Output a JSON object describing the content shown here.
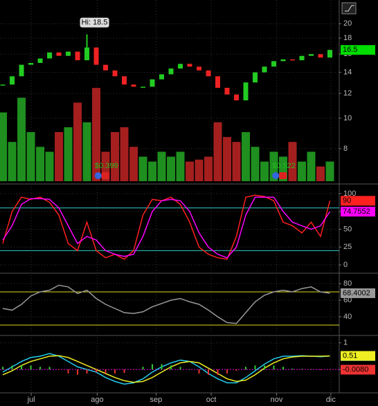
{
  "chart_data": [
    {
      "type": "candlestick",
      "values": [
        12.8,
        13.6,
        14.8,
        15.0,
        15.5,
        16.2,
        15.8,
        16.3,
        15.3,
        16.8,
        14.8,
        14.2,
        13.6,
        12.8,
        12.6,
        12.6,
        13.3,
        13.8,
        14.4,
        14.9,
        14.6,
        14.2,
        13.6,
        12.5,
        11.9,
        11.4,
        13.0,
        14.0,
        14.6,
        15.2,
        15.4,
        15.3,
        15.8,
        16.0,
        15.6,
        16.5
      ],
      "volume": [
        70,
        40,
        85,
        50,
        35,
        30,
        50,
        55,
        80,
        60,
        95,
        30,
        50,
        55,
        35,
        25,
        20,
        30,
        25,
        30,
        20,
        22,
        25,
        60,
        45,
        40,
        50,
        35,
        20,
        30,
        25,
        40,
        20,
        30,
        15,
        20
      ],
      "volume_ylim": [
        0,
        100
      ],
      "ylim": [
        6.3,
        23.8
      ],
      "log_scale": true,
      "yticks": [
        8,
        10,
        12,
        14,
        16,
        18,
        20
      ],
      "xlim": [
        -0.3,
        36
      ],
      "grid": true,
      "up_color": "#22cc22",
      "down_color": "#ee2222",
      "volume_up_color": "#1f8f1f",
      "volume_down_color": "#a51f1f",
      "last_color": "#00dd00",
      "annotation": {
        "label": "Hi: 18.5",
        "value": 18.5,
        "x": 9
      },
      "dividends": [
        {
          "label": "$0.399",
          "x": 10.2
        },
        {
          "label": "$0.522",
          "x": 29.2
        }
      ]
    },
    {
      "type": "line",
      "ylim": [
        -8.7,
        109.7
      ],
      "yticks": [
        0,
        25,
        50,
        75,
        100
      ],
      "xlim": [
        -0.3,
        36
      ],
      "grid": true,
      "hlines": [
        20,
        80
      ],
      "hline_color": "#33cccc",
      "series": [
        {
          "color": "#ff2020",
          "values": [
            30,
            75,
            95,
            92,
            95,
            88,
            70,
            30,
            20,
            60,
            20,
            10,
            15,
            8,
            20,
            70,
            92,
            90,
            95,
            85,
            60,
            25,
            15,
            10,
            8,
            40,
            95,
            98,
            96,
            90,
            60,
            55,
            45,
            60,
            40,
            90
          ]
        },
        {
          "color": "#ff00ff",
          "values": [
            35,
            55,
            85,
            93,
            93,
            92,
            80,
            55,
            30,
            40,
            35,
            20,
            15,
            12,
            15,
            40,
            75,
            90,
            92,
            90,
            75,
            45,
            25,
            15,
            10,
            25,
            70,
            95,
            95,
            95,
            75,
            60,
            55,
            50,
            55,
            74.7552
          ]
        }
      ]
    },
    {
      "type": "line",
      "ylim": [
        20,
        90
      ],
      "yticks": [
        40,
        60,
        80
      ],
      "xlim": [
        -0.3,
        36
      ],
      "grid": true,
      "hlines": [
        30,
        70
      ],
      "hline_color": "#dddd22",
      "series": [
        {
          "color": "#9a9a9a",
          "values": [
            50,
            48,
            55,
            65,
            70,
            72,
            78,
            76,
            68,
            72,
            62,
            55,
            50,
            45,
            44,
            46,
            52,
            56,
            60,
            62,
            58,
            55,
            48,
            40,
            33,
            32,
            45,
            58,
            66,
            70,
            72,
            70,
            74,
            76,
            70,
            68.4002
          ]
        }
      ]
    },
    {
      "type": "line",
      "ylim": [
        -0.8,
        1.2
      ],
      "yticks": [
        0,
        1
      ],
      "xlim": [
        -0.3,
        36
      ],
      "grid": true,
      "xticks": [
        {
          "value": 3.04,
          "label": "jul"
        },
        {
          "value": 10.1,
          "label": "ago"
        },
        {
          "value": 16.4,
          "label": "sep"
        },
        {
          "value": 22.3,
          "label": "oct"
        },
        {
          "value": 29.3,
          "label": "nov"
        },
        {
          "value": 35.1,
          "label": "dic"
        }
      ],
      "series": [
        {
          "color": "#22ccee",
          "values": [
            -0.1,
            0.1,
            0.3,
            0.45,
            0.5,
            0.6,
            0.5,
            0.3,
            0.1,
            0.0,
            -0.1,
            -0.3,
            -0.45,
            -0.55,
            -0.5,
            -0.35,
            -0.1,
            0.1,
            0.25,
            0.35,
            0.3,
            0.1,
            -0.15,
            -0.35,
            -0.5,
            -0.5,
            -0.3,
            -0.05,
            0.2,
            0.4,
            0.5,
            0.5,
            0.52,
            0.5,
            0.48,
            0.50567
          ]
        },
        {
          "color": "#eeee22",
          "values": [
            -0.2,
            -0.05,
            0.15,
            0.3,
            0.4,
            0.5,
            0.52,
            0.45,
            0.3,
            0.15,
            0.0,
            -0.15,
            -0.3,
            -0.42,
            -0.48,
            -0.45,
            -0.3,
            -0.1,
            0.1,
            0.25,
            0.3,
            0.25,
            0.05,
            -0.15,
            -0.35,
            -0.45,
            -0.4,
            -0.2,
            0.05,
            0.25,
            0.4,
            0.47,
            0.5,
            0.5,
            0.5,
            0.51
          ]
        },
        {
          "type": "bar",
          "color": "#ee3333",
          "up_color": "#33cc33",
          "values": [
            0.1,
            0.15,
            0.15,
            0.15,
            0.1,
            0.1,
            -0.02,
            -0.15,
            -0.2,
            -0.15,
            -0.1,
            -0.15,
            -0.15,
            -0.13,
            -0.02,
            0.1,
            0.2,
            0.2,
            0.15,
            0.1,
            0,
            -0.15,
            -0.2,
            -0.2,
            -0.15,
            -0.05,
            0.1,
            0.15,
            0.15,
            0.15,
            0.1,
            0.03,
            0.02,
            0,
            -0.02,
            -0.008
          ],
          "value_labels": [
            null,
            null,
            null,
            null,
            null,
            null,
            null,
            null,
            null,
            null,
            null,
            null,
            null,
            null,
            null,
            null,
            null,
            null,
            null,
            null,
            null,
            null,
            null,
            null,
            null,
            null,
            null,
            null,
            null,
            null,
            null,
            null,
            null,
            null,
            null,
            "-0.0080"
          ]
        }
      ]
    }
  ]
}
